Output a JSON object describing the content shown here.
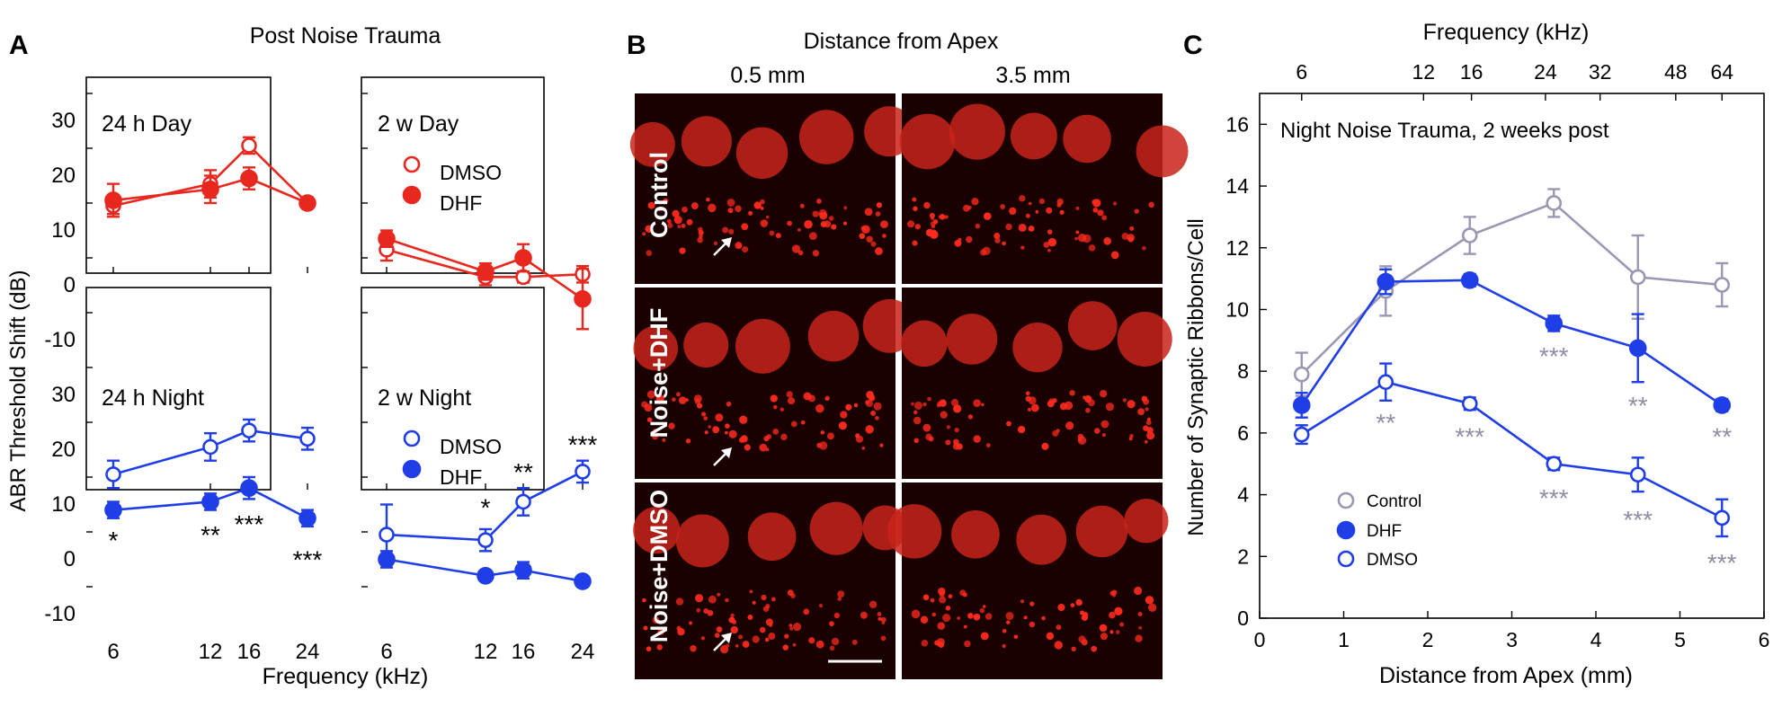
{
  "panel_labels": {
    "a": "A",
    "b": "B",
    "c": "C"
  },
  "panel_a": {
    "title": "Post Noise Trauma",
    "ylabel": "ABR Threshold Shift (dB)",
    "xlabel": "Frequency (kHz)",
    "yticks": [
      "30",
      "20",
      "10",
      "0",
      "-10"
    ],
    "xticks": [
      "6",
      "12",
      "16",
      "24"
    ]
  },
  "panel_b": {
    "title": "Distance from Apex",
    "columns": [
      "0.5 mm",
      "3.5 mm"
    ],
    "rows": [
      "Control",
      "Noise+DHF",
      "Noise+DMSO"
    ]
  },
  "colors": {
    "red": "#e8271f",
    "blue": "#1f3ee8",
    "gray": "#9a97b3",
    "star_gray": "#8e8ca3"
  },
  "chart_data": [
    {
      "type": "line",
      "title": "24 h Day",
      "x": [
        6,
        12,
        16,
        24
      ],
      "ylim": [
        -15,
        35
      ],
      "color": "red",
      "series": [
        {
          "name": "DMSO",
          "marker": "open",
          "values": [
            9.5,
            13.5,
            20.5,
            10
          ],
          "err": [
            1.5,
            2.5,
            1.5,
            1
          ]
        },
        {
          "name": "DHF",
          "marker": "filled",
          "values": [
            10.5,
            12.5,
            14.5,
            10
          ],
          "err": [
            3,
            2.5,
            2,
            1
          ]
        }
      ],
      "stars": []
    },
    {
      "type": "line",
      "title": "2 w Day",
      "x": [
        6,
        12,
        16,
        24
      ],
      "ylim": [
        -15,
        35
      ],
      "color": "red",
      "legend": [
        "DMSO",
        "DHF"
      ],
      "series": [
        {
          "name": "DMSO",
          "marker": "open",
          "values": [
            1.5,
            -3.5,
            -3.5,
            -3
          ],
          "err": [
            2,
            1.5,
            1,
            1.5
          ]
        },
        {
          "name": "DHF",
          "marker": "filled",
          "values": [
            3.5,
            -2.5,
            0,
            -7.5
          ],
          "err": [
            1.5,
            1.5,
            2.5,
            5.5
          ]
        }
      ],
      "stars": []
    },
    {
      "type": "line",
      "title": "24 h Night",
      "x": [
        6,
        12,
        16,
        24
      ],
      "ylim": [
        -15,
        35
      ],
      "color": "blue",
      "series": [
        {
          "name": "DMSO",
          "marker": "open",
          "values": [
            10.5,
            15.5,
            18.5,
            17
          ],
          "err": [
            2.5,
            2.5,
            2,
            2
          ]
        },
        {
          "name": "DHF",
          "marker": "filled",
          "values": [
            4,
            5.5,
            8,
            2.5
          ],
          "err": [
            1.5,
            1.5,
            2,
            1.5
          ]
        }
      ],
      "stars": [
        {
          "x": 6,
          "y": -1.5,
          "text": "*"
        },
        {
          "x": 12,
          "y": -0.5,
          "text": "**"
        },
        {
          "x": 16,
          "y": 1.5,
          "text": "***"
        },
        {
          "x": 24,
          "y": -5,
          "text": "***"
        }
      ]
    },
    {
      "type": "line",
      "title": "2 w Night",
      "x": [
        6,
        12,
        16,
        24
      ],
      "ylim": [
        -15,
        35
      ],
      "color": "blue",
      "legend": [
        "DMSO",
        "DHF"
      ],
      "series": [
        {
          "name": "DMSO",
          "marker": "open",
          "values": [
            -0.5,
            -1.5,
            5.5,
            11
          ],
          "err": [
            5.5,
            2,
            2.5,
            2
          ]
        },
        {
          "name": "DHF",
          "marker": "filled",
          "values": [
            -5,
            -8,
            -7,
            -9
          ],
          "err": [
            1.5,
            1,
            1.5,
            1
          ]
        }
      ],
      "stars": [
        {
          "x": 12,
          "y": 4.5,
          "text": "*"
        },
        {
          "x": 16,
          "y": 11,
          "text": "**"
        },
        {
          "x": 24,
          "y": 16,
          "text": "***"
        }
      ]
    },
    {
      "type": "line",
      "title": "Night Noise Trauma, 2 weeks post",
      "xlabel": "Distance from Apex (mm)",
      "ylabel": "Number of Synaptic Ribbons/Cell",
      "x2label": "Frequency (kHz)",
      "xlim": [
        0,
        6
      ],
      "ylim": [
        0,
        17
      ],
      "xticks": [
        "0",
        "1",
        "2",
        "3",
        "4",
        "5",
        "6"
      ],
      "yticks": [
        "0",
        "2",
        "4",
        "6",
        "8",
        "10",
        "12",
        "14",
        "16"
      ],
      "x2ticks": [
        {
          "label": "6",
          "x": 0.5
        },
        {
          "label": "12",
          "x": 1.95
        },
        {
          "label": "16",
          "x": 2.52
        },
        {
          "label": "24",
          "x": 3.4
        },
        {
          "label": "32",
          "x": 4.05
        },
        {
          "label": "48",
          "x": 4.95
        },
        {
          "label": "64",
          "x": 5.5
        }
      ],
      "x": [
        0.5,
        1.5,
        2.5,
        3.5,
        4.5,
        5.5
      ],
      "legend": [
        "Control",
        "DHF",
        "DMSO"
      ],
      "series": [
        {
          "name": "Control",
          "marker": "open",
          "color": "gray",
          "values": [
            7.9,
            10.6,
            12.4,
            13.45,
            11.05,
            10.8
          ],
          "err": [
            0.7,
            0.8,
            0.6,
            0.45,
            1.35,
            0.7
          ]
        },
        {
          "name": "DHF",
          "marker": "filled",
          "color": "blue",
          "values": [
            6.9,
            10.9,
            10.95,
            9.55,
            8.75,
            6.9
          ],
          "err": [
            0.4,
            0.4,
            0.2,
            0.25,
            1.1,
            0.2
          ]
        },
        {
          "name": "DMSO",
          "marker": "open",
          "color": "blue",
          "values": [
            5.95,
            7.65,
            6.95,
            5.0,
            4.65,
            3.25
          ],
          "err": [
            0.3,
            0.6,
            0.2,
            0.2,
            0.55,
            0.6
          ]
        }
      ],
      "stars": [
        {
          "x": 3.5,
          "y": 8.5,
          "text": "***"
        },
        {
          "x": 4.5,
          "y": 6.9,
          "text": "**"
        },
        {
          "x": 5.5,
          "y": 5.9,
          "text": "**"
        },
        {
          "x": 1.5,
          "y": 6.35,
          "text": "**"
        },
        {
          "x": 2.5,
          "y": 5.9,
          "text": "***"
        },
        {
          "x": 3.5,
          "y": 3.9,
          "text": "***"
        },
        {
          "x": 4.5,
          "y": 3.2,
          "text": "***"
        },
        {
          "x": 5.5,
          "y": 1.8,
          "text": "***"
        }
      ]
    }
  ]
}
